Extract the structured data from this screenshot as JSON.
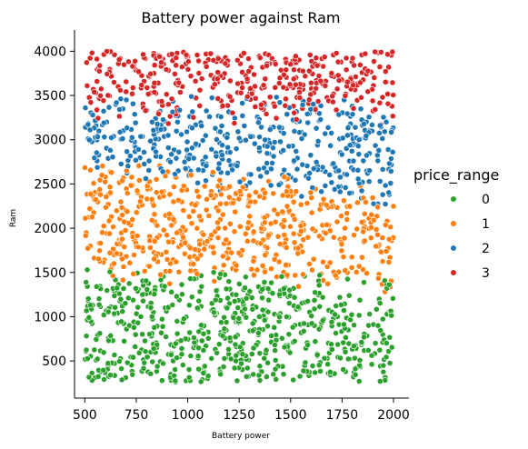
{
  "chart_data": {
    "type": "scatter",
    "title": "Battery power against Ram",
    "xlabel": "Battery power",
    "ylabel": "Ram",
    "xlim": [
      450,
      2075
    ],
    "ylim": [
      80,
      4240
    ],
    "x_ticks": [
      500,
      750,
      1000,
      1250,
      1500,
      1750,
      2000
    ],
    "y_ticks": [
      500,
      1000,
      1500,
      2000,
      2500,
      3000,
      3500,
      4000
    ],
    "grid": false,
    "legend": {
      "title": "price_range",
      "position": "right"
    },
    "series": [
      {
        "name": "0",
        "color": "#2ca02c",
        "ram_range": [
          260,
          1600
        ],
        "count": 500
      },
      {
        "name": "1",
        "color": "#ff7f0e",
        "ram_range": [
          1000,
          2700
        ],
        "count": 500
      },
      {
        "name": "2",
        "color": "#1f77b4",
        "ram_range": [
          1500,
          3600
        ],
        "count": 500
      },
      {
        "name": "3",
        "color": "#d62728",
        "ram_range": [
          2700,
          4000
        ],
        "count": 500
      }
    ]
  }
}
